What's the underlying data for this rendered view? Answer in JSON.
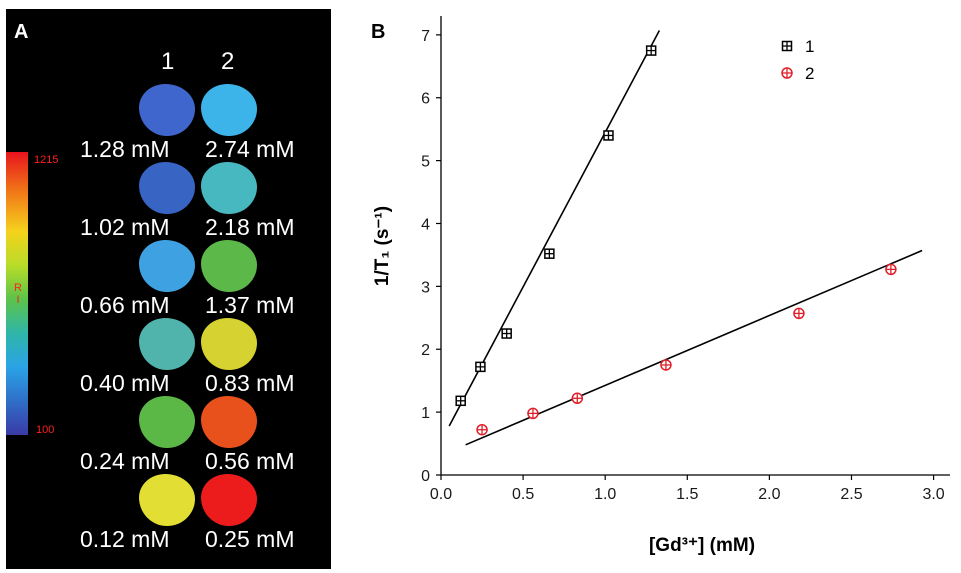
{
  "panel_a": {
    "letter": "A",
    "column_labels": [
      "1",
      "2"
    ],
    "colorbar": {
      "max_label": "1215",
      "min_label": "100",
      "title": "R I"
    },
    "rows": [
      {
        "left": {
          "label": "1.28 mM",
          "color": "#3e66cc"
        },
        "right": {
          "label": "2.74 mM",
          "color": "#3cb4ea"
        }
      },
      {
        "left": {
          "label": "1.02 mM",
          "color": "#3864c4"
        },
        "right": {
          "label": "2.18 mM",
          "color": "#48b8c0"
        }
      },
      {
        "left": {
          "label": "0.66 mM",
          "color": "#3ea2e2"
        },
        "right": {
          "label": "1.37 mM",
          "color": "#5cb848"
        }
      },
      {
        "left": {
          "label": "0.40 mM",
          "color": "#50b4ac"
        },
        "right": {
          "label": "0.83 mM",
          "color": "#d6d232"
        }
      },
      {
        "left": {
          "label": "0.24 mM",
          "color": "#5cb846"
        },
        "right": {
          "label": "0.56 mM",
          "color": "#e8501c"
        }
      },
      {
        "left": {
          "label": "0.12 mM",
          "color": "#e2de34"
        },
        "right": {
          "label": "0.25 mM",
          "color": "#ec1c1c"
        }
      }
    ]
  },
  "chart_data": {
    "type": "scatter",
    "panel_letter": "B",
    "xlabel": "[Gd³⁺] (mM)",
    "ylabel": "1/T₁ (s⁻¹)",
    "xlim": [
      0,
      3.1
    ],
    "ylim": [
      0,
      7.3
    ],
    "xticks": [
      "0.0",
      "0.5",
      "1.0",
      "1.5",
      "2.0",
      "2.5",
      "3.0"
    ],
    "yticks": [
      "0",
      "1",
      "2",
      "3",
      "4",
      "5",
      "6",
      "7"
    ],
    "grid": false,
    "legend_position": "top-right",
    "series": [
      {
        "name": "1",
        "marker": "boxed-plus",
        "color": "#000000",
        "x": [
          0.12,
          0.24,
          0.4,
          0.66,
          1.02,
          1.28
        ],
        "y": [
          1.18,
          1.72,
          2.25,
          3.52,
          5.4,
          6.75
        ],
        "fit_line": {
          "x": [
            0.05,
            1.33
          ],
          "y": [
            0.78,
            7.07
          ]
        }
      },
      {
        "name": "2",
        "marker": "circled-plus",
        "color": "#e0202a",
        "x": [
          0.25,
          0.56,
          0.83,
          1.37,
          2.18,
          2.74
        ],
        "y": [
          0.72,
          0.98,
          1.22,
          1.75,
          2.57,
          3.27
        ],
        "fit_line": {
          "x": [
            0.15,
            2.93
          ],
          "y": [
            0.48,
            3.57
          ]
        }
      }
    ]
  }
}
